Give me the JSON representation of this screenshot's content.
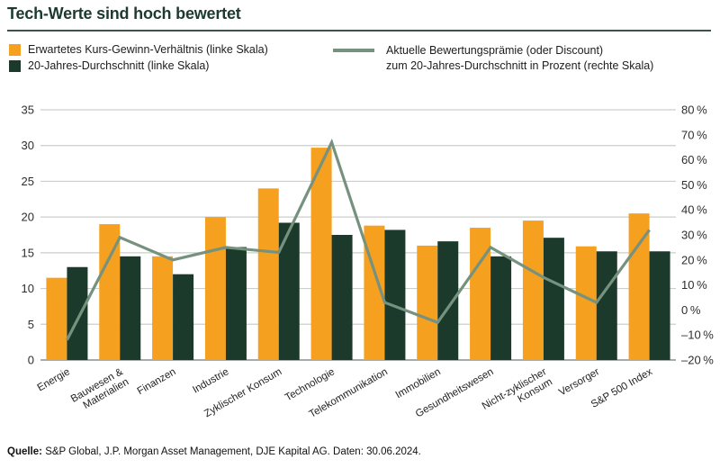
{
  "header": {
    "title": "Tech-Werte sind hoch bewertet"
  },
  "legend": {
    "bar1_label": "Erwartetes Kurs-Gewinn-Verhältnis (linke Skala)",
    "bar2_label": "20-Jahres-Durchschnitt (linke Skala)",
    "line_label_line1": "Aktuelle Bewertungsprämie (oder Discount)",
    "line_label_line2": "zum 20-Jahres-Durchschnitt in Prozent (rechte Skala)"
  },
  "footer": {
    "label": "Quelle:",
    "text": "S&P Global, J.P. Morgan Asset Management, DJE Kapital AG. Daten: 30.06.2024."
  },
  "colors": {
    "orange": "#F5A01E",
    "dark_green": "#1B3A2B",
    "line_green": "#76927F",
    "grid": "#C9CFC9",
    "axis": "#99A199",
    "title": "#1C3A2E"
  },
  "chart_data": {
    "type": "bar",
    "title": "Tech-Werte sind hoch bewertet",
    "categories": [
      "Energie",
      "Bauwesen &\nMaterialien",
      "Finanzen",
      "Industrie",
      "Zyklischer Konsum",
      "Technologie",
      "Telekommunikation",
      "Immobilien",
      "Gesundheitswesen",
      "Nicht-zyklischer\nKonsum",
      "Versorger",
      "S&P 500 Index"
    ],
    "series": [
      {
        "name": "Erwartetes Kurs-Gewinn-Verhältnis (linke Skala)",
        "type": "bar",
        "axis": "left",
        "color_key": "orange",
        "values": [
          11.5,
          19,
          14.5,
          20,
          24,
          29.7,
          18.8,
          16,
          18.5,
          19.5,
          15.9,
          20.5
        ]
      },
      {
        "name": "20-Jahres-Durchschnitt (linke Skala)",
        "type": "bar",
        "axis": "left",
        "color_key": "dark_green",
        "values": [
          13,
          14.5,
          12,
          15.8,
          19.2,
          17.5,
          18.2,
          16.6,
          14.5,
          17.1,
          15.2,
          15.2
        ]
      },
      {
        "name": "Aktuelle Bewertungsprämie (oder Discount) zum 20-Jahres-Durchschnitt in Prozent (rechte Skala)",
        "type": "line",
        "axis": "right",
        "color_key": "line_green",
        "values": [
          -12,
          29,
          20,
          25,
          23,
          67,
          3,
          -5,
          25,
          13,
          3,
          32
        ]
      }
    ],
    "left_axis": {
      "min": 0,
      "max": 35,
      "step": 5,
      "ticks": [
        0,
        5,
        10,
        15,
        20,
        25,
        30,
        35
      ]
    },
    "right_axis": {
      "min": -20,
      "max": 80,
      "step": 10,
      "tick_labels": [
        "80 %",
        "70 %",
        "60 %",
        "50 %",
        "40 %",
        "30 %",
        "20 %",
        "10 %",
        "0 %",
        "–10 %",
        "–20 %"
      ]
    },
    "grid": true,
    "legend_position": "top"
  }
}
